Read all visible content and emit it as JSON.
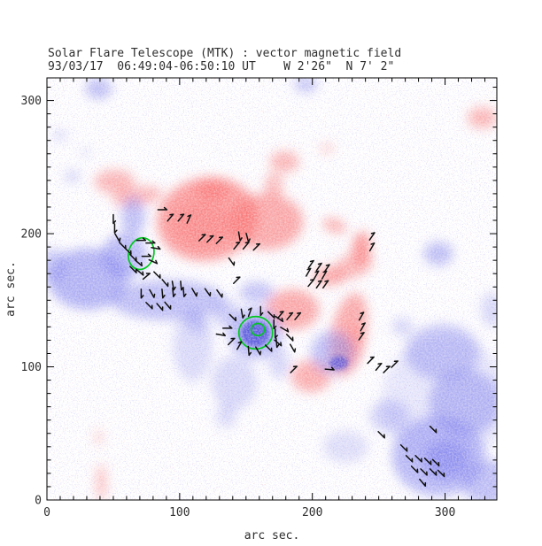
{
  "header": {
    "title": "Solar Flare Telescope (MTK) : vector magnetic field",
    "subtitle": "93/03/17  06:49:04-06:50:10 UT    W 2'26\"  N 7' 2\""
  },
  "chart_data": {
    "type": "heatmap",
    "subtype": "vector-magnetogram-with-transverse-field-vectors",
    "title": "Solar Flare Telescope (MTK) : vector magnetic field",
    "subtitle": "93/03/17  06:49:04-06:50:10 UT    W 2'26\"  N 7' 2\"",
    "xlabel": "arc sec.",
    "ylabel": "arc sec.",
    "xlim": [
      0,
      339
    ],
    "ylim": [
      0,
      317
    ],
    "xticks": [
      0,
      100,
      200,
      300
    ],
    "yticks": [
      0,
      100,
      200,
      300
    ],
    "major_tick_step": 100,
    "minor_tick_step": 10,
    "grid": false,
    "legend": "none",
    "colors": {
      "positive_polarity": "#f96868",
      "negative_polarity": "#7a7aec",
      "negative_dark_core": "#4343d6",
      "contour": "#00c81e",
      "vector": "#111111",
      "axis": "#000000",
      "background": "#ffffff"
    },
    "positive_regions": [
      [
        51,
        239,
        15,
        9,
        0,
        0.5
      ],
      [
        68,
        228,
        19,
        7,
        -8,
        0.5
      ],
      [
        125,
        233,
        13,
        8,
        0,
        0.55
      ],
      [
        121,
        211,
        38,
        31,
        -10,
        0.7
      ],
      [
        117,
        207,
        22,
        17,
        0,
        0.3
      ],
      [
        165,
        209,
        28,
        21,
        0,
        0.6
      ],
      [
        171,
        236,
        7,
        10,
        0,
        0.45
      ],
      [
        179,
        254,
        11,
        8,
        0,
        0.5
      ],
      [
        211,
        264,
        5,
        4,
        0,
        0.3
      ],
      [
        328,
        287,
        11,
        8,
        0,
        0.5
      ],
      [
        216.7,
        206,
        9,
        5,
        20,
        0.55
      ],
      [
        236.7,
        188,
        7,
        12,
        0,
        0.55
      ],
      [
        212.7,
        168,
        12,
        7,
        0,
        0.6
      ],
      [
        231,
        176,
        15,
        9,
        -20,
        0.5
      ],
      [
        238,
        193,
        6,
        9,
        0,
        0.45
      ],
      [
        185,
        143,
        20,
        15,
        0,
        0.6
      ],
      [
        227,
        124,
        13,
        32,
        12,
        0.6
      ],
      [
        230,
        113,
        8,
        18,
        15,
        0.3
      ],
      [
        199,
        93,
        15,
        12,
        0,
        0.55
      ],
      [
        41,
        13,
        4,
        14,
        0,
        0.4
      ],
      [
        39,
        47,
        3,
        6,
        0,
        0.3
      ]
    ],
    "negative_regions": [
      [
        39,
        309,
        10,
        8,
        0,
        0.5
      ],
      [
        195,
        312,
        9,
        6,
        0,
        0.45
      ],
      [
        10,
        274,
        5,
        4,
        0,
        0.3
      ],
      [
        19,
        243,
        6,
        5,
        0,
        0.3
      ],
      [
        29,
        261,
        4,
        3,
        0,
        0.25
      ],
      [
        31,
        166,
        30,
        23,
        0,
        0.6
      ],
      [
        58,
        183,
        17,
        17,
        0,
        0.55
      ],
      [
        65,
        213,
        9,
        15,
        0,
        0.5
      ],
      [
        5,
        176,
        10,
        13,
        0,
        0.4
      ],
      [
        91,
        150,
        43,
        15,
        0,
        0.5
      ],
      [
        135,
        140,
        10,
        10,
        0,
        0.4
      ],
      [
        110,
        116,
        15,
        27,
        0,
        0.28
      ],
      [
        113,
        133,
        8,
        8,
        0,
        0.35
      ],
      [
        157,
        125,
        20,
        19,
        0,
        0.55
      ],
      [
        158,
        156,
        13,
        8,
        0,
        0.45
      ],
      [
        175,
        103,
        8,
        12,
        0,
        0.3
      ],
      [
        141,
        88,
        17,
        20,
        0,
        0.3
      ],
      [
        135,
        63,
        8,
        9,
        0,
        0.28
      ],
      [
        215,
        111,
        16,
        16,
        45,
        0.5
      ],
      [
        295,
        185,
        11,
        9,
        0,
        0.5
      ],
      [
        300,
        75,
        48,
        48,
        0,
        0.18
      ],
      [
        298,
        111,
        28,
        21,
        0,
        0.45
      ],
      [
        315,
        73,
        27,
        25,
        0,
        0.5
      ],
      [
        295,
        33,
        35,
        30,
        0,
        0.55
      ],
      [
        301,
        30,
        17,
        15,
        0,
        0.6
      ],
      [
        333,
        13,
        20,
        17,
        0,
        0.5
      ],
      [
        258,
        63,
        15,
        12,
        0,
        0.35
      ],
      [
        225,
        40,
        17,
        12,
        0,
        0.25
      ],
      [
        335,
        143,
        8,
        13,
        0,
        0.3
      ],
      [
        268,
        130,
        8,
        7,
        0,
        0.3
      ]
    ],
    "dark_cores": [
      [
        157,
        125,
        11,
        10,
        0,
        0.8
      ],
      [
        220,
        103,
        7,
        5,
        0,
        0.65
      ]
    ],
    "contours": [
      [
        157.3,
        125.6,
        12.7,
        12.2,
        0
      ],
      [
        159,
        128,
        5,
        4.6,
        0
      ],
      [
        71,
        185,
        9.5,
        12,
        15
      ]
    ],
    "vectors": [
      [
        87,
        218,
        0
      ],
      [
        93,
        212,
        -50
      ],
      [
        101,
        212,
        -50
      ],
      [
        107,
        211,
        -65
      ],
      [
        117,
        197,
        -45
      ],
      [
        123,
        196,
        -45
      ],
      [
        130,
        195,
        -45
      ],
      [
        145,
        198,
        80
      ],
      [
        151,
        197,
        75
      ],
      [
        143,
        191,
        -50
      ],
      [
        150,
        191,
        -50
      ],
      [
        158,
        190,
        -45
      ],
      [
        139,
        179,
        55
      ],
      [
        143,
        165,
        -45
      ],
      [
        50,
        211,
        90
      ],
      [
        51,
        204,
        90
      ],
      [
        53,
        197,
        60
      ],
      [
        57,
        191,
        45
      ],
      [
        61,
        187,
        45
      ],
      [
        65,
        182,
        45
      ],
      [
        69,
        178,
        40
      ],
      [
        71,
        195,
        0
      ],
      [
        78,
        193,
        0
      ],
      [
        82,
        189,
        10
      ],
      [
        75,
        183,
        0
      ],
      [
        80,
        179,
        25
      ],
      [
        65,
        173,
        45
      ],
      [
        70,
        171,
        40
      ],
      [
        75,
        168,
        -40
      ],
      [
        83,
        169,
        45
      ],
      [
        89,
        163,
        50
      ],
      [
        95,
        161,
        80
      ],
      [
        101,
        161,
        85
      ],
      [
        71,
        155,
        90
      ],
      [
        79,
        155,
        60
      ],
      [
        87,
        155,
        85
      ],
      [
        95,
        156,
        85
      ],
      [
        103,
        156,
        85
      ],
      [
        111,
        156,
        60
      ],
      [
        121,
        156,
        55
      ],
      [
        130,
        155,
        55
      ],
      [
        77,
        146,
        45
      ],
      [
        85,
        145,
        50
      ],
      [
        91,
        146,
        50
      ],
      [
        140,
        137,
        45
      ],
      [
        147,
        140,
        80
      ],
      [
        153,
        141,
        -70
      ],
      [
        161,
        142,
        90
      ],
      [
        169,
        139,
        45
      ],
      [
        175,
        136,
        35
      ],
      [
        136,
        129,
        0
      ],
      [
        179,
        128,
        30
      ],
      [
        183,
        122,
        45
      ],
      [
        139,
        119,
        -45
      ],
      [
        145,
        116,
        -60
      ],
      [
        152,
        112,
        85
      ],
      [
        159,
        112,
        60
      ],
      [
        167,
        114,
        45
      ],
      [
        174,
        118,
        40
      ],
      [
        131,
        124,
        10
      ],
      [
        185,
        114,
        60
      ],
      [
        245,
        198,
        -55
      ],
      [
        245,
        190,
        -60
      ],
      [
        199,
        177,
        -55
      ],
      [
        205,
        175,
        -55
      ],
      [
        211,
        174,
        -55
      ],
      [
        197,
        171,
        -60
      ],
      [
        203,
        169,
        -60
      ],
      [
        209,
        169,
        -60
      ],
      [
        199,
        163,
        -50
      ],
      [
        205,
        162,
        -55
      ],
      [
        210,
        162,
        -55
      ],
      [
        176,
        139,
        -50
      ],
      [
        183,
        138,
        -50
      ],
      [
        189,
        138,
        -50
      ],
      [
        171,
        132,
        90
      ],
      [
        172,
        125,
        90
      ],
      [
        173,
        118,
        85
      ],
      [
        237,
        138,
        -60
      ],
      [
        238,
        130,
        -60
      ],
      [
        237,
        123,
        -55
      ],
      [
        213,
        98,
        5
      ],
      [
        244,
        105,
        -45
      ],
      [
        250,
        100,
        -50
      ],
      [
        256,
        98,
        -45
      ],
      [
        262,
        102,
        -45
      ],
      [
        186,
        98,
        -45
      ],
      [
        252,
        49,
        45
      ],
      [
        269,
        39,
        45
      ],
      [
        273,
        31,
        45
      ],
      [
        280,
        31,
        45
      ],
      [
        287,
        29,
        45
      ],
      [
        293,
        28,
        45
      ],
      [
        277,
        23,
        45
      ],
      [
        284,
        21,
        45
      ],
      [
        291,
        21,
        45
      ],
      [
        297,
        20,
        45
      ],
      [
        283,
        13,
        50
      ],
      [
        291,
        53,
        45
      ]
    ]
  }
}
